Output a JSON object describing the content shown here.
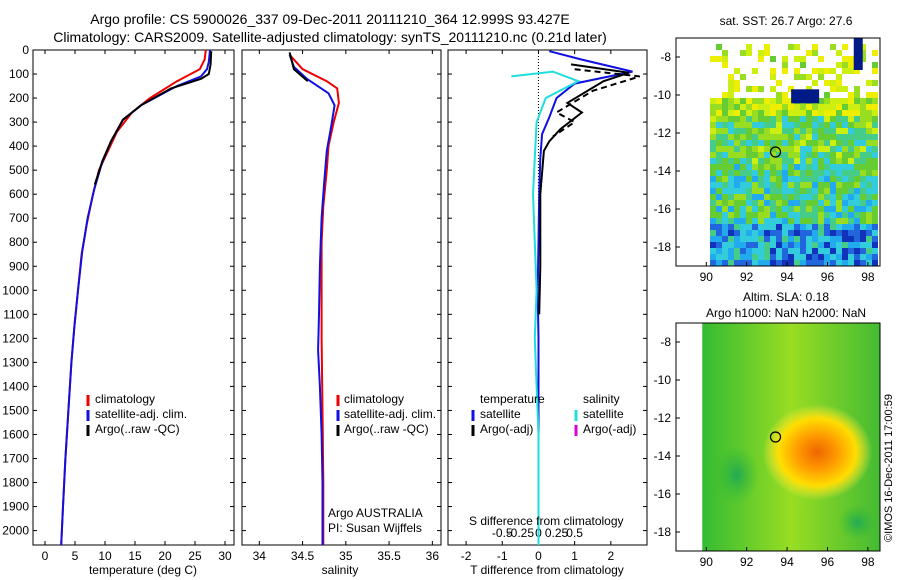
{
  "header": {
    "line1": "Argo profile: CS 5900026_337 09-Dec-2011 20111210_364 12.999S 93.427E",
    "line2": "Climatology: CARS2009. Satellite-adjusted climatology: synTS_20111210.nc (0.21d later)"
  },
  "panels": {
    "temperature": {
      "xlabel": "temperature (deg C)",
      "legend": [
        "climatology",
        "satellite-adj. clim.",
        "Argo(..raw -QC)"
      ]
    },
    "salinity": {
      "xlabel": "salinity",
      "legend": [
        "climatology",
        "satellite-adj. clim.",
        "Argo(..raw -QC)"
      ],
      "note1": "Argo AUSTRALIA",
      "note2": "PI: Susan Wijffels"
    },
    "difference": {
      "xlabel": "T difference from climatology",
      "top_label": "S difference from climatology",
      "legend_temp_title": "temperature",
      "legend_sal_title": "salinity",
      "legend_temp": [
        "satellite",
        "Argo(-adj)"
      ],
      "legend_sal": [
        "satellite",
        "Argo(-adj)"
      ]
    },
    "sst_map": {
      "title": "sat. SST: 26.7 Argo: 27.6"
    },
    "sla_map": {
      "title1": "Altim. SLA: 0.18",
      "title2": "Argo h1000: NaN h2000: NaN"
    }
  },
  "footer": {
    "credit": "©IMOS 16-Dec-2011 17:00:59"
  },
  "colors": {
    "climatology": "#ee0000",
    "satellite": "#1010e0",
    "argo": "#000000",
    "sal_satellite": "#22dddd",
    "sal_argo": "#dd00dd"
  },
  "chart_data": [
    {
      "type": "line",
      "name": "temperature",
      "xlabel": "temperature (deg C)",
      "xlim": [
        -2,
        31.5
      ],
      "ylim": [
        2060,
        0
      ],
      "xticks": [
        "0",
        "5",
        "10",
        "15",
        "20",
        "25",
        "30"
      ],
      "yticks": [
        "0",
        "100",
        "200",
        "300",
        "400",
        "500",
        "600",
        "700",
        "800",
        "900",
        "1000",
        "1100",
        "1200",
        "1300",
        "1400",
        "1500",
        "1600",
        "1700",
        "1800",
        "1900",
        "2000"
      ],
      "series": [
        {
          "name": "climatology",
          "color": "#ee0000",
          "points": [
            [
              26.8,
              0
            ],
            [
              26.6,
              40
            ],
            [
              25.8,
              80
            ],
            [
              22,
              130
            ],
            [
              17.5,
              200
            ],
            [
              14.5,
              260
            ],
            [
              12,
              340
            ],
            [
              10.5,
              420
            ],
            [
              9,
              500
            ],
            [
              8,
              600
            ],
            [
              7,
              720
            ],
            [
              6.1,
              850
            ],
            [
              5.5,
              1000
            ],
            [
              4.9,
              1150
            ],
            [
              4.4,
              1300
            ],
            [
              3.9,
              1500
            ],
            [
              3.4,
              1700
            ],
            [
              3.0,
              1900
            ],
            [
              2.7,
              2060
            ]
          ]
        },
        {
          "name": "satellite-adj. clim.",
          "color": "#1010e0",
          "points": [
            [
              27.5,
              0
            ],
            [
              27.3,
              50
            ],
            [
              27,
              80
            ],
            [
              26,
              110
            ],
            [
              22,
              150
            ],
            [
              16,
              230
            ],
            [
              13,
              290
            ],
            [
              11,
              380
            ],
            [
              9.5,
              470
            ],
            [
              8.2,
              580
            ],
            [
              7.1,
              700
            ],
            [
              6.2,
              840
            ],
            [
              5.5,
              1000
            ],
            [
              4.9,
              1150
            ],
            [
              4.4,
              1300
            ],
            [
              3.9,
              1500
            ],
            [
              3.4,
              1700
            ],
            [
              3.0,
              1900
            ],
            [
              2.7,
              2060
            ]
          ]
        },
        {
          "name": "Argo(..raw -QC)",
          "color": "#000000",
          "points": [
            [
              27.7,
              5
            ],
            [
              27.6,
              60
            ],
            [
              27.3,
              100
            ],
            [
              26,
              120
            ],
            [
              21,
              160
            ],
            [
              16,
              230
            ],
            [
              13,
              290
            ],
            [
              11,
              380
            ],
            [
              9.6,
              460
            ],
            [
              8.3,
              560
            ]
          ]
        }
      ]
    },
    {
      "type": "line",
      "name": "salinity",
      "xlabel": "salinity",
      "xlim": [
        33.8,
        36.1
      ],
      "ylim": [
        2060,
        0
      ],
      "xticks": [
        "34",
        "34.5",
        "35",
        "35.5",
        "36"
      ],
      "series": [
        {
          "name": "climatology",
          "color": "#ee0000",
          "points": [
            [
              34.35,
              20
            ],
            [
              34.5,
              80
            ],
            [
              34.78,
              130
            ],
            [
              34.9,
              160
            ],
            [
              34.92,
              220
            ],
            [
              34.86,
              300
            ],
            [
              34.8,
              400
            ],
            [
              34.78,
              500
            ],
            [
              34.74,
              650
            ],
            [
              34.72,
              800
            ],
            [
              34.72,
              1000
            ],
            [
              34.72,
              1200
            ],
            [
              34.73,
              1500
            ],
            [
              34.74,
              1800
            ],
            [
              34.74,
              2060
            ]
          ]
        },
        {
          "name": "satellite-adj. clim.",
          "color": "#1010e0",
          "points": [
            [
              34.35,
              20
            ],
            [
              34.4,
              70
            ],
            [
              34.55,
              120
            ],
            [
              34.8,
              180
            ],
            [
              34.87,
              230
            ],
            [
              34.83,
              320
            ],
            [
              34.78,
              420
            ],
            [
              34.75,
              550
            ],
            [
              34.72,
              700
            ],
            [
              34.7,
              900
            ],
            [
              34.69,
              1100
            ],
            [
              34.68,
              1250
            ],
            [
              34.7,
              1400
            ],
            [
              34.72,
              1600
            ],
            [
              34.73,
              1800
            ],
            [
              34.73,
              2060
            ]
          ]
        },
        {
          "name": "Argo(..raw -QC)",
          "color": "#000000",
          "points": [
            [
              34.35,
              10
            ],
            [
              34.4,
              80
            ],
            [
              34.56,
              130
            ]
          ]
        }
      ]
    },
    {
      "type": "line",
      "name": "difference",
      "xlabel": "T difference from climatology",
      "xlim": [
        -2.5,
        3
      ],
      "ylim": [
        2060,
        0
      ],
      "xticks": [
        "-2",
        "-1",
        "0",
        "1",
        "2"
      ],
      "top_xticks": [
        "-0.5",
        "-0.25",
        "0",
        "0.25",
        "0.5"
      ],
      "series": [
        {
          "name": "temperature satellite",
          "color": "#1010e0",
          "points": [
            [
              0.3,
              5
            ],
            [
              1.2,
              40
            ],
            [
              2.6,
              90
            ],
            [
              1.0,
              140
            ],
            [
              0.5,
              200
            ],
            [
              0.3,
              280
            ],
            [
              0.1,
              350
            ],
            [
              0.05,
              450
            ],
            [
              0.02,
              600
            ],
            [
              0,
              800
            ],
            [
              -0.02,
              1000
            ],
            [
              0,
              1200
            ],
            [
              0,
              1500
            ],
            [
              0,
              1800
            ],
            [
              0,
              2060
            ]
          ]
        },
        {
          "name": "temperature Argo(-adj)",
          "color": "#000000",
          "points": [
            [
              0.9,
              60
            ],
            [
              2.5,
              95
            ],
            [
              1.8,
              130
            ],
            [
              0.8,
              220
            ],
            [
              1.2,
              260
            ],
            [
              0.6,
              330
            ],
            [
              0.3,
              380
            ],
            [
              0.15,
              420
            ],
            [
              0.05,
              600
            ],
            [
              0.05,
              900
            ],
            [
              0.02,
              1100
            ]
          ]
        },
        {
          "name": "salinity satellite",
          "color": "#22dddd",
          "points": [
            [
              -0.75,
              110
            ],
            [
              0.4,
              90
            ],
            [
              1.1,
              130
            ],
            [
              0.2,
              200
            ],
            [
              -0.05,
              300
            ],
            [
              -0.1,
              450
            ],
            [
              -0.15,
              600
            ],
            [
              -0.1,
              800
            ],
            [
              -0.05,
              1000
            ],
            [
              -0.1,
              1200
            ],
            [
              -0.05,
              1400
            ],
            [
              0,
              1600
            ],
            [
              0,
              1800
            ],
            [
              0,
              2060
            ]
          ]
        },
        {
          "name": "salinity Argo(-adj)",
          "color": "#dd00dd",
          "points": []
        }
      ]
    },
    {
      "type": "heatmap",
      "name": "sst_map",
      "title": "sat. SST: 26.7 Argo: 27.6",
      "xlim": [
        88.5,
        98.6
      ],
      "ylim": [
        -19,
        -7
      ],
      "xticks": [
        "90",
        "92",
        "94",
        "96",
        "98"
      ],
      "yticks": [
        "-8",
        "-10",
        "-12",
        "-14",
        "-16",
        "-18"
      ],
      "argo_position": [
        93.427,
        -12.999
      ]
    },
    {
      "type": "heatmap",
      "name": "sla_map",
      "title": "Altim. SLA: 0.18",
      "xlim": [
        88.5,
        98.6
      ],
      "ylim": [
        -19,
        -7
      ],
      "xticks": [
        "90",
        "92",
        "94",
        "96",
        "98"
      ],
      "yticks": [
        "-8",
        "-10",
        "-12",
        "-14",
        "-16",
        "-18"
      ],
      "argo_position": [
        93.427,
        -12.999
      ]
    }
  ]
}
